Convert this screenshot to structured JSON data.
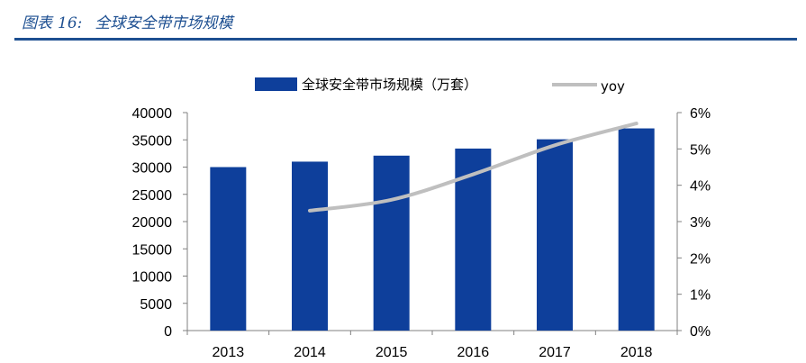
{
  "header": {
    "figure_label": "图表",
    "figure_number": "16:",
    "title": "全球安全带市场规模"
  },
  "colors": {
    "header_blue": "#1d4f91",
    "bar": "#0e3f9b",
    "line": "#bfbfbf",
    "axis": "#808080"
  },
  "chart_data": {
    "type": "bar",
    "categories": [
      "2013",
      "2014",
      "2015",
      "2016",
      "2017",
      "2018"
    ],
    "series": [
      {
        "name": "全球安全带市场规模（万套）",
        "type": "bar",
        "axis": "left",
        "values": [
          30000,
          31000,
          32100,
          33400,
          35100,
          37100
        ]
      },
      {
        "name": "yoy",
        "type": "line",
        "axis": "right",
        "values": [
          null,
          3.3,
          3.6,
          4.3,
          5.1,
          5.7
        ]
      }
    ],
    "y_left": {
      "min": 0,
      "max": 40000,
      "ticks": [
        "0",
        "5000",
        "10000",
        "15000",
        "20000",
        "25000",
        "30000",
        "35000",
        "40000"
      ]
    },
    "y_right": {
      "min": 0,
      "max": 6,
      "ticks": [
        "0%",
        "1%",
        "2%",
        "3%",
        "4%",
        "5%",
        "6%"
      ]
    },
    "legend_position": "top",
    "grid": false
  }
}
